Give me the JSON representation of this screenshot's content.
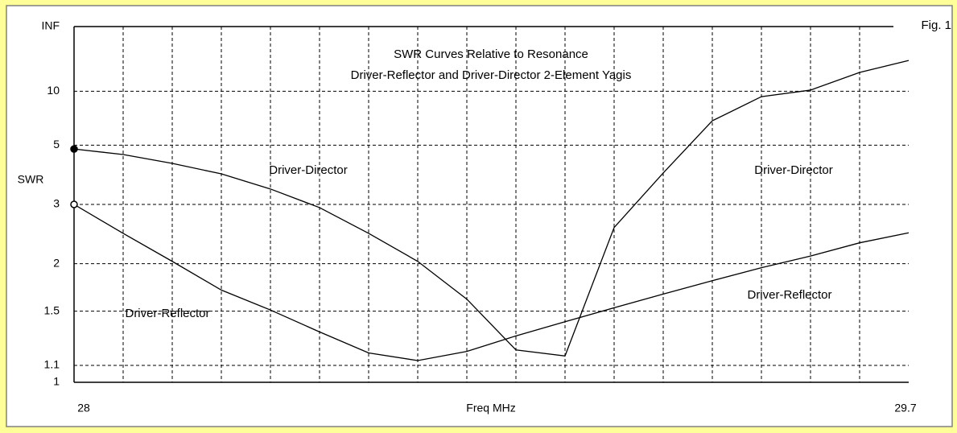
{
  "chart_data": {
    "type": "line",
    "title": [
      "SWR Curves Relative to Resonance",
      "Driver-Reflector and Driver-Director 2-Element Yagis"
    ],
    "figure_label": "Fig. 1",
    "xlabel": "Freq MHz",
    "ylabel": "SWR",
    "y_scale": "swr",
    "x": [
      28,
      28.1,
      28.2,
      28.3,
      28.4,
      28.5,
      28.6,
      28.7,
      28.8,
      28.9,
      29,
      29.1,
      29.2,
      29.3,
      29.4,
      29.5,
      29.6,
      29.7
    ],
    "series": [
      {
        "name": "Driver-Director",
        "color": "#000000",
        "start_marker": "filled",
        "values": [
          4.81,
          4.56,
          4.2,
          3.83,
          3.38,
          2.93,
          2.44,
          2.03,
          1.61,
          1.2,
          1.16,
          2.54,
          3.86,
          6.55,
          9.15,
          10.2,
          14.5,
          20
        ]
      },
      {
        "name": "Driver-Reflector",
        "color": "#000000",
        "start_marker": "open",
        "values": [
          3.0,
          2.44,
          2.03,
          1.7,
          1.51,
          1.33,
          1.18,
          1.13,
          1.19,
          1.3,
          1.41,
          1.53,
          1.66,
          1.8,
          1.95,
          2.1,
          2.29,
          2.45
        ]
      }
    ],
    "annotations": [
      "Driver-Director",
      "Driver-Director",
      "Driver-Reflector",
      "Driver-Reflector"
    ],
    "xlim": [
      28,
      29.7
    ],
    "xticks": [
      28,
      29.7
    ],
    "xgrid": [
      28.1,
      28.2,
      28.3,
      28.4,
      28.5,
      28.6,
      28.7,
      28.8,
      28.9,
      29,
      29.1,
      29.2,
      29.3,
      29.4,
      29.5,
      29.6
    ],
    "ylim": [
      1,
      null
    ],
    "yticks": [
      {
        "value": null,
        "label": "INF"
      },
      10,
      5,
      3,
      2,
      1.5,
      1.1,
      1
    ],
    "grid": true
  }
}
